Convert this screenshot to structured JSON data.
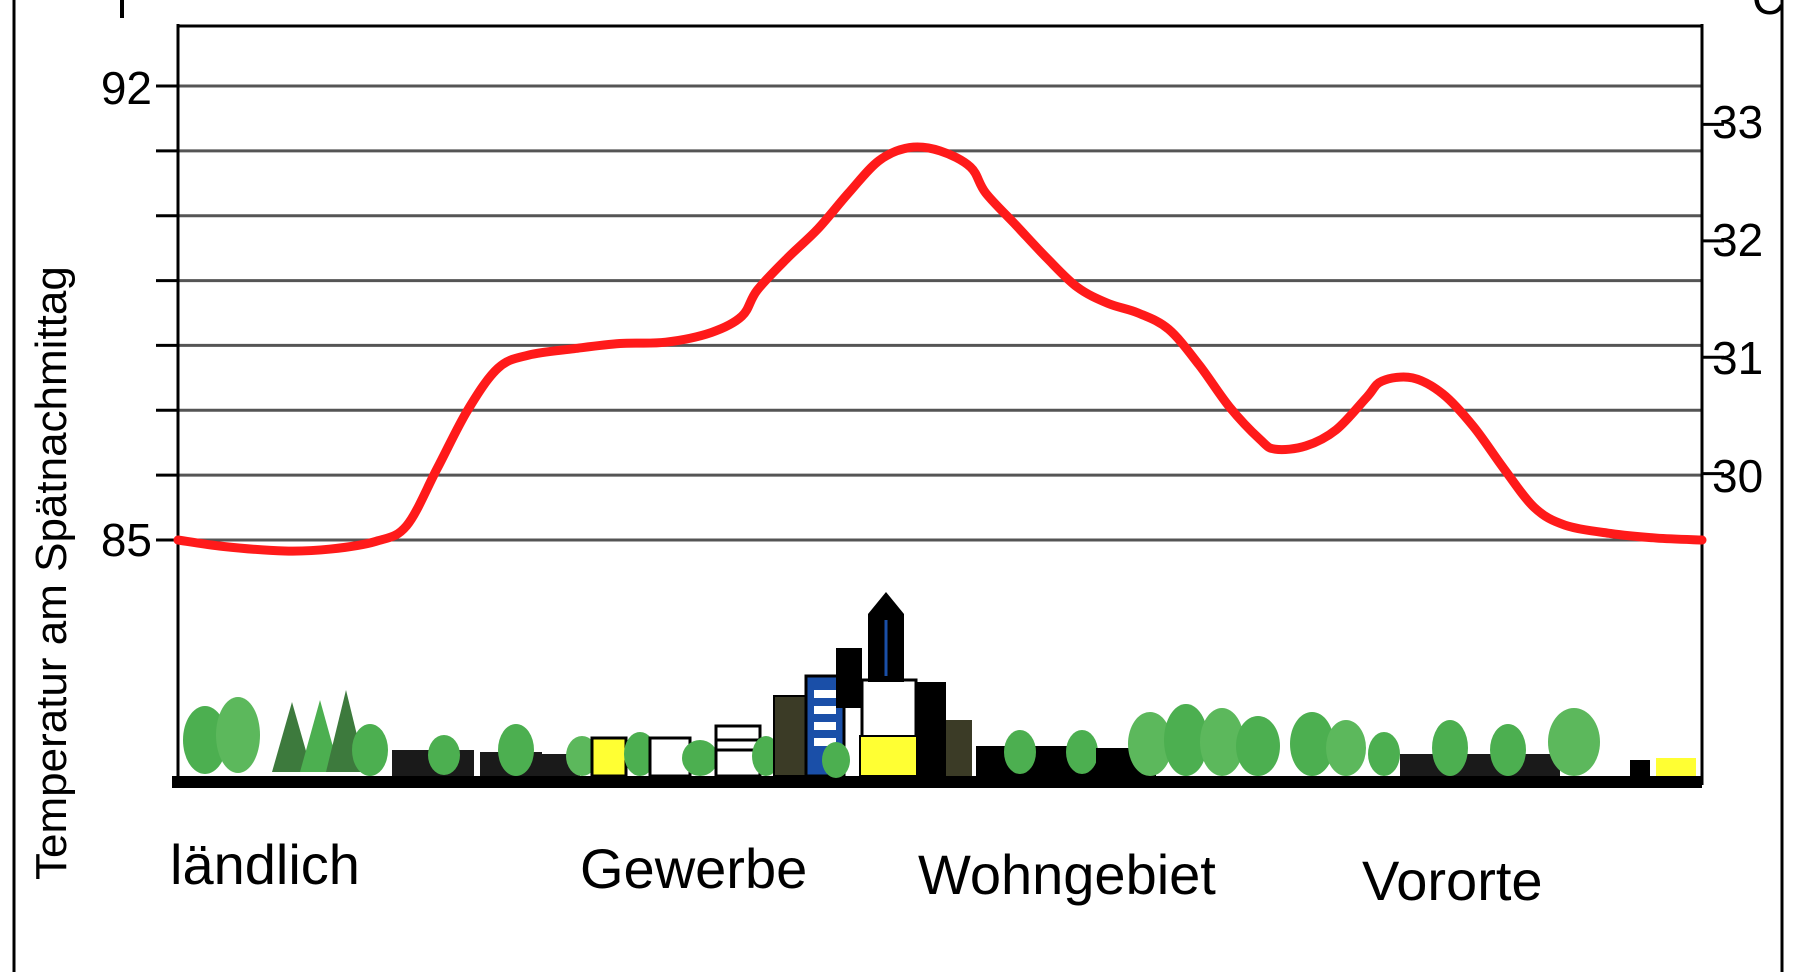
{
  "chart_data": {
    "type": "line",
    "ylabel_left": "Temperatur am Spätnachmittag",
    "left_ticks": [
      85,
      92
    ],
    "right_ticks": [
      30,
      31,
      32,
      33
    ],
    "right_ylabel_partial": "C",
    "left_ylim": [
      85,
      92
    ],
    "right_ylim": [
      29.43,
      33.33
    ],
    "grid": true,
    "gridlines_left_values": [
      85,
      86,
      87,
      88,
      89,
      90,
      91,
      92
    ],
    "zones": [
      "ländlich",
      "Gewerbe",
      "Wohngebiet",
      "Vororte"
    ],
    "series": [
      {
        "color": "#ff1a1a",
        "points": [
          [
            0.0,
            85.0
          ],
          [
            0.03,
            84.9
          ],
          [
            0.07,
            84.83
          ],
          [
            0.1,
            84.86
          ],
          [
            0.13,
            84.98
          ],
          [
            0.15,
            85.22
          ],
          [
            0.17,
            86.1
          ],
          [
            0.19,
            87.0
          ],
          [
            0.21,
            87.65
          ],
          [
            0.23,
            87.85
          ],
          [
            0.26,
            87.95
          ],
          [
            0.29,
            88.03
          ],
          [
            0.32,
            88.05
          ],
          [
            0.35,
            88.2
          ],
          [
            0.37,
            88.45
          ],
          [
            0.38,
            88.85
          ],
          [
            0.4,
            89.35
          ],
          [
            0.42,
            89.8
          ],
          [
            0.44,
            90.35
          ],
          [
            0.46,
            90.85
          ],
          [
            0.48,
            91.05
          ],
          [
            0.5,
            91.0
          ],
          [
            0.52,
            90.75
          ],
          [
            0.53,
            90.35
          ],
          [
            0.55,
            89.85
          ],
          [
            0.57,
            89.35
          ],
          [
            0.59,
            88.9
          ],
          [
            0.61,
            88.65
          ],
          [
            0.63,
            88.5
          ],
          [
            0.65,
            88.25
          ],
          [
            0.67,
            87.7
          ],
          [
            0.69,
            87.05
          ],
          [
            0.71,
            86.55
          ],
          [
            0.72,
            86.4
          ],
          [
            0.74,
            86.45
          ],
          [
            0.76,
            86.7
          ],
          [
            0.78,
            87.2
          ],
          [
            0.79,
            87.45
          ],
          [
            0.81,
            87.5
          ],
          [
            0.83,
            87.25
          ],
          [
            0.85,
            86.75
          ],
          [
            0.87,
            86.1
          ],
          [
            0.89,
            85.5
          ],
          [
            0.91,
            85.23
          ],
          [
            0.94,
            85.1
          ],
          [
            0.97,
            85.03
          ],
          [
            1.0,
            85.0
          ]
        ]
      }
    ]
  },
  "colors": {
    "curve": "#ff1a1a",
    "grid": "#555555",
    "tree": "#4caf50",
    "building_dark": "#000000",
    "window_yellow": "#ffff33",
    "window_blue": "#1a4fa8"
  }
}
